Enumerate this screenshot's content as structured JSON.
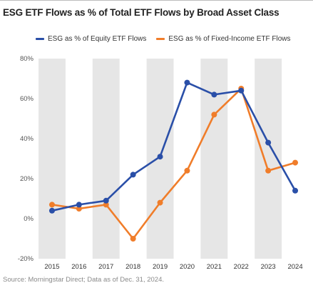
{
  "title": "ESG ETF Flows as % of Total ETF Flows by Broad Asset Class",
  "source": "Source: Morningstar Direct; Data as of Dec. 31, 2024.",
  "colors": {
    "equity": "#2a4fa8",
    "fixed_income": "#f07d2a",
    "band": "#e6e6e6"
  },
  "chart_data": {
    "type": "line",
    "x": [
      "2015",
      "2016",
      "2017",
      "2018",
      "2019",
      "2020",
      "2021",
      "2022",
      "2023",
      "2024"
    ],
    "series": [
      {
        "name": "ESG as % of Equity ETF Flows",
        "values": [
          4,
          7,
          9,
          22,
          31,
          68,
          62,
          64,
          38,
          14
        ]
      },
      {
        "name": "ESG as % of Fixed-Income ETF Flows",
        "values": [
          7,
          5,
          7,
          -10,
          8,
          24,
          52,
          65,
          24,
          28
        ]
      }
    ],
    "ylim": [
      -20,
      80
    ],
    "yticks": [
      "80%",
      "60%",
      "40%",
      "20%",
      "0%",
      "-20%"
    ],
    "ytick_values": [
      80,
      60,
      40,
      20,
      0,
      -20
    ],
    "grid": false,
    "legend_position": "top-left"
  }
}
